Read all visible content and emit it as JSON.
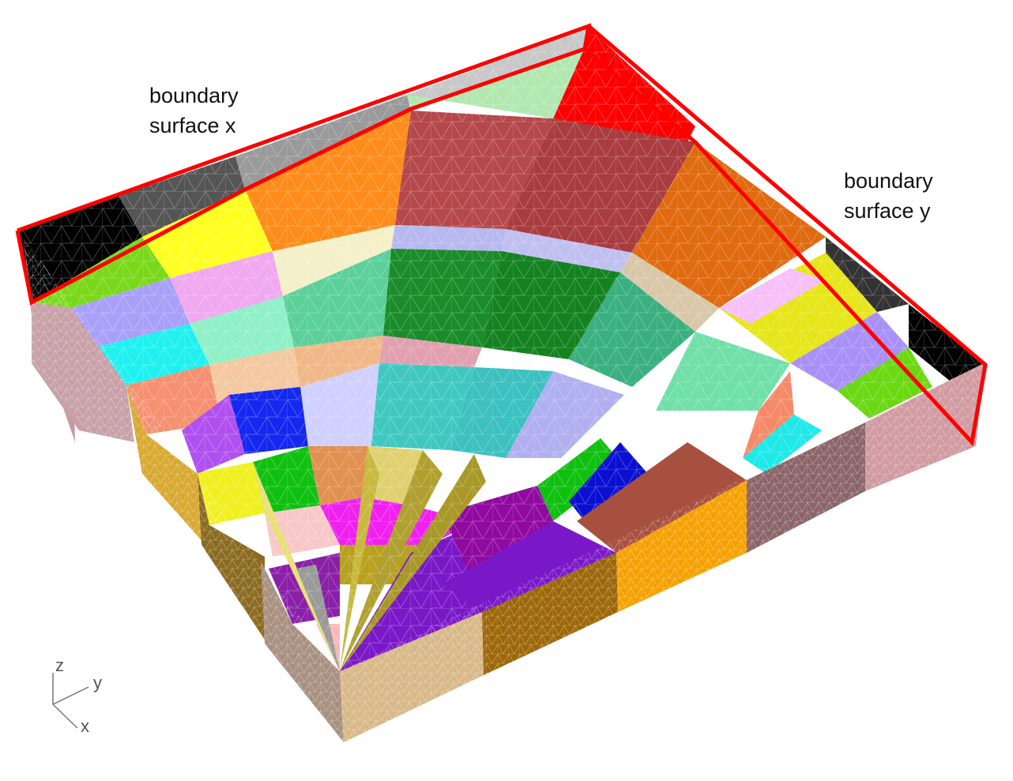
{
  "annotations": {
    "boundary_x": {
      "line1": "boundary",
      "line2": "surface x"
    },
    "boundary_y": {
      "line1": "boundary",
      "line2": "surface y"
    }
  },
  "axes": {
    "z": "z",
    "y": "y",
    "x": "x"
  },
  "colors": {
    "highlight": "#ff0000",
    "mesh_line": "#ffffff",
    "axis": "#777777"
  }
}
